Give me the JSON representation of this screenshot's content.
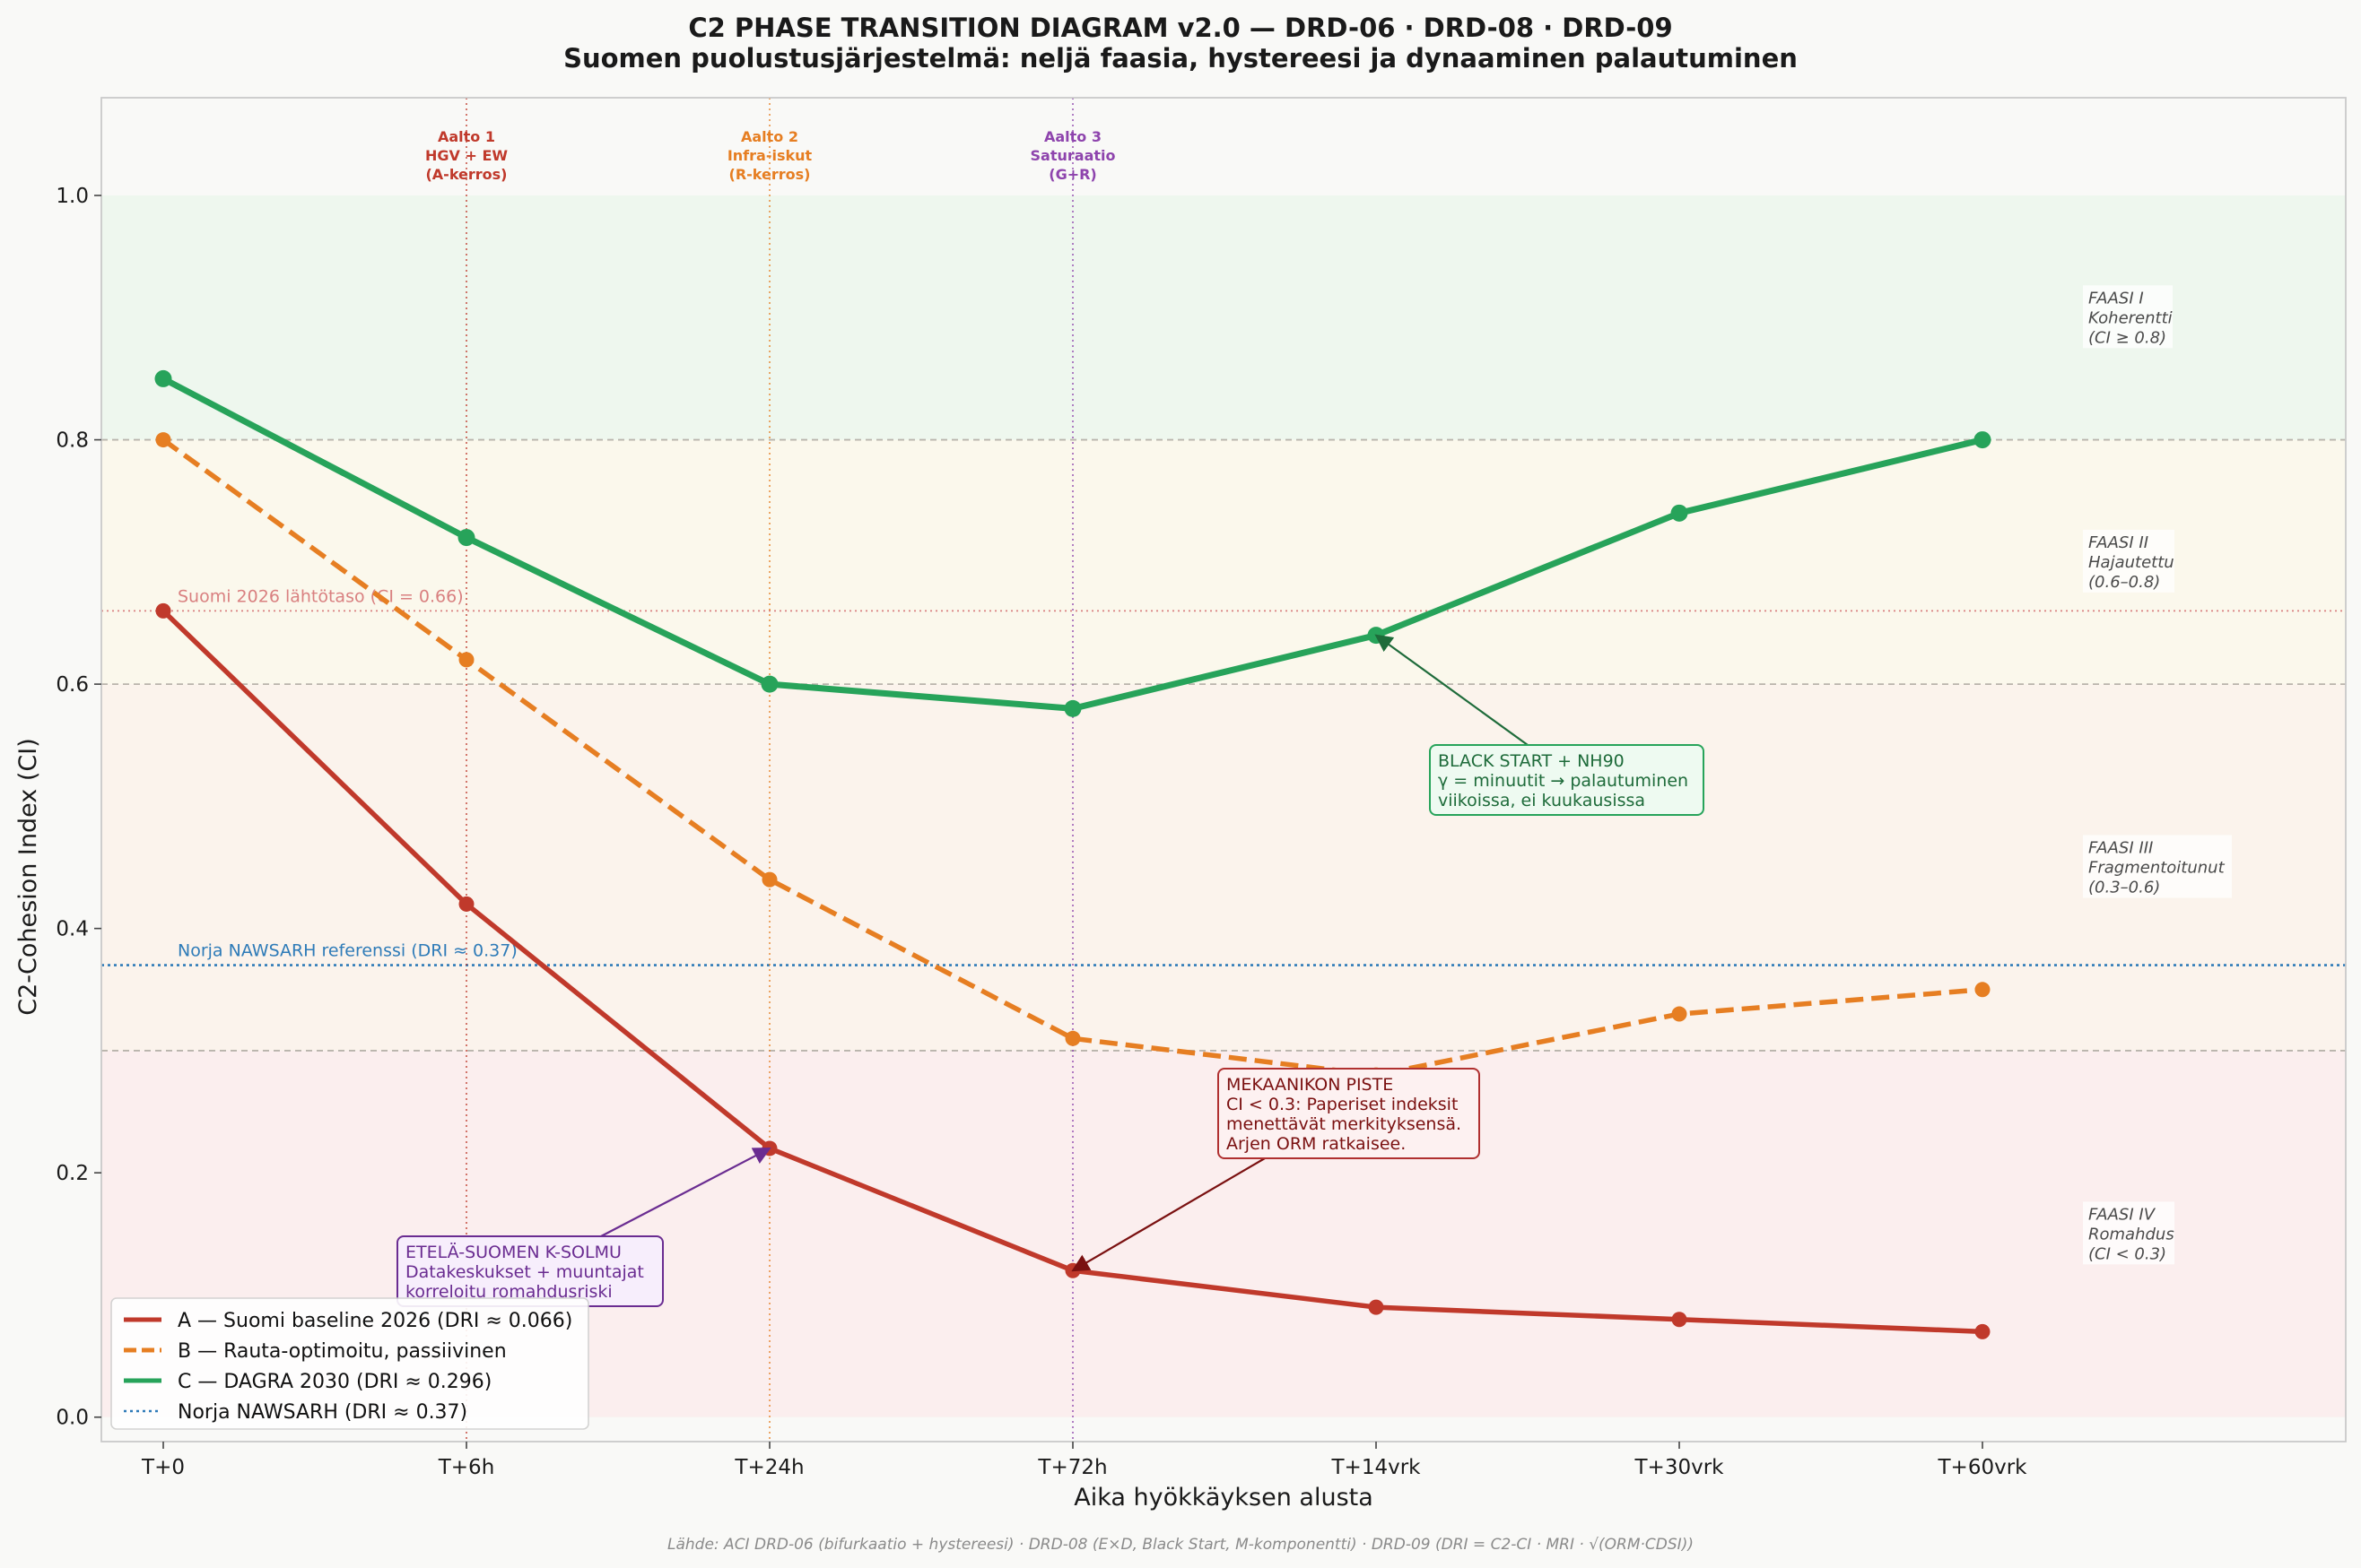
{
  "title_line1": "C2 PHASE TRANSITION DIAGRAM v2.0 — DRD-06 · DRD-08 · DRD-09",
  "title_line2": "Suomen puolustusjärjestelmä: neljä faasia, hystereesi ja dynaaminen palautuminen",
  "source": "Lähde: ACI DRD-06 (bifurkaatio + hystereesi) · DRD-08 (E×D, Black Start, M-komponentti) · DRD-09 (DRI = C2-CI · MRI · √(ORM·CDSI))",
  "chart_data": {
    "type": "line",
    "xlabel": "Aika hyökkäyksen alusta",
    "ylabel": "C2-Cohesion Index (CI)",
    "categories": [
      "T+0",
      "T+6h",
      "T+24h",
      "T+72h",
      "T+14vrk",
      "T+30vrk",
      "T+60vrk"
    ],
    "ylim": [
      -0.02,
      1.08
    ],
    "yticks": [
      "0.0",
      "0.2",
      "0.4",
      "0.6",
      "0.8",
      "1.0"
    ],
    "grid": false,
    "legend_position": "bottom-left",
    "series": [
      {
        "name": "A — Suomi baseline 2026 (DRI ≈ 0.066)",
        "values": [
          0.66,
          0.42,
          0.22,
          0.12,
          0.09,
          0.08,
          0.07
        ],
        "color": "#c0392b",
        "style": "solid"
      },
      {
        "name": "B — Rauta-optimoitu, passiivinen",
        "values": [
          0.8,
          0.62,
          0.44,
          0.31,
          0.28,
          0.33,
          0.35
        ],
        "color": "#e67e22",
        "style": "dashed"
      },
      {
        "name": "C — DAGRA 2030 (DRI ≈ 0.296)",
        "values": [
          0.85,
          0.72,
          0.6,
          0.58,
          0.64,
          0.74,
          0.8
        ],
        "color": "#27a35a",
        "style": "solid"
      }
    ],
    "reference_lines": [
      {
        "name": "Norja NAWSARH (DRI ≈ 0.37)",
        "value": 0.37,
        "color": "#2e7bb8",
        "label": "Norja NAWSARH referenssi (DRI ≈ 0.37)"
      },
      {
        "value": 0.66,
        "color": "#d98080",
        "label": "Suomi 2026 lähtötaso (CI = 0.66)"
      }
    ],
    "phases": [
      {
        "lines": [
          "FAASI I",
          "Koherentti",
          "(CI ≥ 0.8)"
        ],
        "range": [
          0.8,
          1.0
        ],
        "color": "#eef7ee",
        "label_y": 0.9
      },
      {
        "lines": [
          "FAASI II",
          "Hajautettu",
          "(0.6–0.8)"
        ],
        "range": [
          0.6,
          0.8
        ],
        "color": "#fbf8ec",
        "label_y": 0.7
      },
      {
        "lines": [
          "FAASI III",
          "Fragmentoitunut",
          "(0.3–0.6)"
        ],
        "range": [
          0.3,
          0.6
        ],
        "color": "#fbf3ec",
        "label_y": 0.45
      },
      {
        "lines": [
          "FAASI IV",
          "Romahdus",
          "(CI < 0.3)"
        ],
        "range": [
          0.0,
          0.3
        ],
        "color": "#fbeeee",
        "label_y": 0.15
      }
    ],
    "phase_boundaries": [
      0.3,
      0.6,
      0.8
    ],
    "waves": [
      {
        "x_index": 1,
        "lines": [
          "Aalto 1",
          "HGV + EW",
          "(A-kerros)"
        ],
        "color": "#c0392b"
      },
      {
        "x_index": 2,
        "lines": [
          "Aalto 2",
          "Infra-iskut",
          "(R-kerros)"
        ],
        "color": "#e67e22"
      },
      {
        "x_index": 3,
        "lines": [
          "Aalto 3",
          "Saturaatio",
          "(G+R)"
        ],
        "color": "#8e44ad"
      }
    ],
    "annotations": [
      {
        "lines": [
          "BLACK START + NH90",
          "γ = minuutit → palautuminen",
          "viikoissa, ei kuukausissa"
        ],
        "target": [
          4,
          0.64
        ],
        "color": "#1e6b3a",
        "bg": "#eefaf1",
        "border": "#27a35a"
      },
      {
        "lines": [
          "MEKAANIKON PISTE",
          "CI < 0.3: Paperiset indeksit",
          "menettävät merkityksensä.",
          "Arjen ORM ratkaisee."
        ],
        "target": [
          3,
          0.12
        ],
        "color": "#7a1010",
        "bg": "#fdf1f1",
        "border": "#b03030"
      },
      {
        "lines": [
          "ETELÄ-SUOMEN K-SOLMU",
          "Datakeskukset + muuntajat",
          "korreloitu romahdusriski"
        ],
        "target": [
          2,
          0.22
        ],
        "color": "#6a2c91",
        "bg": "#f7eefc",
        "border": "#6a2c91"
      }
    ]
  }
}
